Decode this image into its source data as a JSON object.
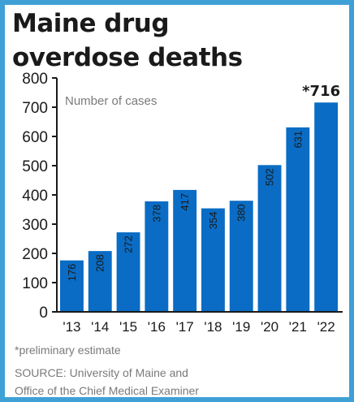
{
  "chart_data": {
    "type": "bar",
    "title": "Maine drug overdose deaths",
    "title_lines": [
      "Maine drug",
      "overdose deaths"
    ],
    "subtitle": "Number of cases",
    "categories": [
      "'13",
      "'14",
      "'15",
      "'16",
      "'17",
      "'18",
      "'19",
      "'20",
      "'21",
      "'22"
    ],
    "values": [
      176,
      208,
      272,
      378,
      417,
      354,
      380,
      502,
      631,
      716
    ],
    "value_labels": [
      "176",
      "208",
      "272",
      "378",
      "417",
      "354",
      "380",
      "502",
      "631",
      "*716"
    ],
    "yticks": [
      "0",
      "100",
      "200",
      "300",
      "400",
      "500",
      "600",
      "700",
      "800"
    ],
    "ylim": [
      0,
      800
    ],
    "grid": false,
    "legend": "none",
    "bar_color": "#0a6cc4",
    "footnote": "*preliminary estimate",
    "source_lines": [
      "SOURCE: University of Maine and",
      "Office of the Chief Medical Examiner"
    ]
  }
}
